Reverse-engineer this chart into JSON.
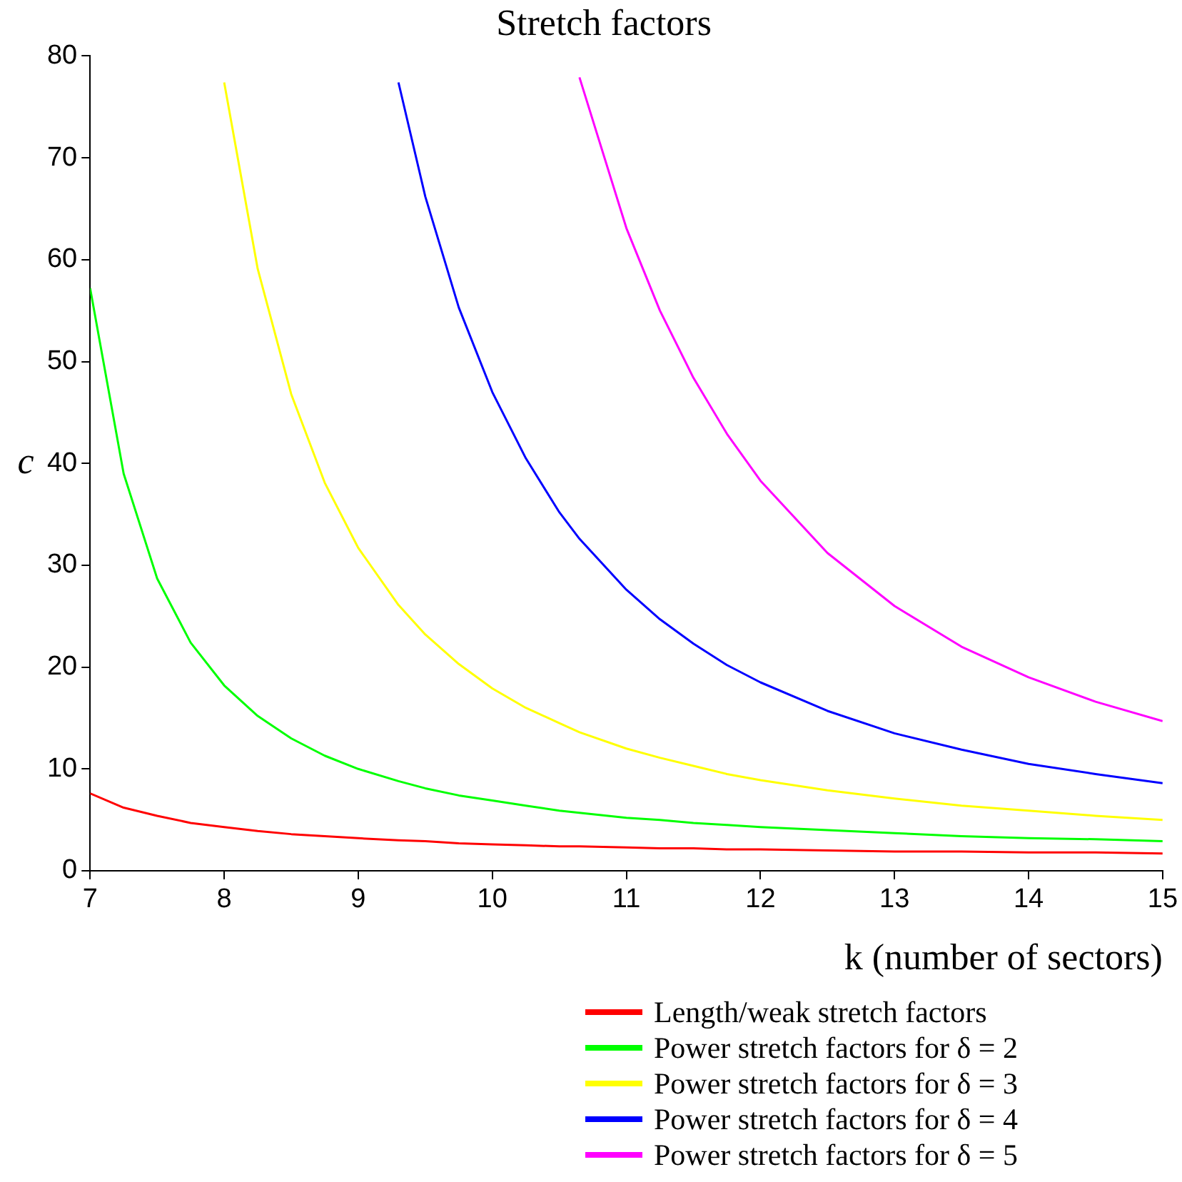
{
  "chart_data": {
    "type": "line",
    "title": "Stretch factors",
    "xlabel": "k (number of sectors)",
    "ylabel": "c",
    "xlim": [
      7,
      15
    ],
    "xticks": [
      7,
      8,
      9,
      10,
      11,
      12,
      13,
      14,
      15
    ],
    "ylim": [
      0,
      80
    ],
    "yticks": [
      0,
      10,
      20,
      30,
      40,
      50,
      60,
      70,
      80
    ],
    "grid": false,
    "legend": "bottom",
    "marker": "none",
    "line_style": "solid",
    "series": [
      {
        "name": "Length/weak stretch factors",
        "color": "#ff0000",
        "x": [
          7,
          7.25,
          7.5,
          7.75,
          8,
          8.25,
          8.5,
          8.75,
          9,
          9.3,
          9.5,
          9.75,
          10,
          10.25,
          10.5,
          10.65,
          11,
          11.25,
          11.5,
          11.75,
          12,
          12.5,
          13,
          13.5,
          14,
          14.5,
          15
        ],
        "values": [
          7.6,
          6.2,
          5.4,
          4.7,
          4.3,
          3.9,
          3.6,
          3.4,
          3.2,
          3.0,
          2.9,
          2.7,
          2.6,
          2.5,
          2.4,
          2.4,
          2.3,
          2.2,
          2.2,
          2.1,
          2.1,
          2.0,
          1.9,
          1.9,
          1.8,
          1.8,
          1.7
        ]
      },
      {
        "name": "Power stretch factors for δ = 2",
        "color": "#00ff00",
        "x": [
          7,
          7.25,
          7.5,
          7.75,
          8,
          8.25,
          8.5,
          8.75,
          9,
          9.3,
          9.5,
          9.75,
          10,
          10.25,
          10.5,
          10.65,
          11,
          11.25,
          11.5,
          11.75,
          12,
          12.5,
          13,
          13.5,
          14,
          14.5,
          15
        ],
        "values": [
          57.2,
          39.0,
          28.7,
          22.4,
          18.2,
          15.2,
          13.0,
          11.3,
          10.0,
          8.8,
          8.1,
          7.4,
          6.9,
          6.4,
          5.9,
          5.7,
          5.2,
          5.0,
          4.7,
          4.5,
          4.3,
          4.0,
          3.7,
          3.4,
          3.2,
          3.1,
          2.9
        ]
      },
      {
        "name": "Power stretch factors for δ = 3",
        "color": "#ffff00",
        "x": [
          8,
          8.25,
          8.5,
          8.75,
          9,
          9.3,
          9.5,
          9.75,
          10,
          10.25,
          10.5,
          10.65,
          11,
          11.25,
          11.5,
          11.75,
          12,
          12.5,
          13,
          13.5,
          14,
          14.5,
          15
        ],
        "values": [
          77.4,
          59.1,
          46.8,
          38.1,
          31.7,
          26.1,
          23.2,
          20.3,
          17.9,
          16.0,
          14.5,
          13.6,
          12.0,
          11.1,
          10.3,
          9.5,
          8.9,
          7.9,
          7.1,
          6.4,
          5.9,
          5.4,
          5.0
        ]
      },
      {
        "name": "Power stretch factors for δ = 4",
        "color": "#0000ff",
        "x": [
          9.3,
          9.5,
          9.75,
          10,
          10.25,
          10.5,
          10.65,
          11,
          11.25,
          11.5,
          11.75,
          12,
          12.5,
          13,
          13.5,
          14,
          14.5,
          15
        ],
        "values": [
          77.4,
          66.2,
          55.3,
          47.0,
          40.5,
          35.2,
          32.6,
          27.6,
          24.7,
          22.3,
          20.2,
          18.5,
          15.7,
          13.5,
          11.9,
          10.5,
          9.5,
          8.6
        ]
      },
      {
        "name": "Power stretch factors for δ = 5",
        "color": "#ff00ff",
        "x": [
          10.65,
          11,
          11.25,
          11.5,
          11.75,
          12,
          12.5,
          13,
          13.5,
          14,
          14.5,
          15
        ],
        "values": [
          77.9,
          63.1,
          55.0,
          48.4,
          42.9,
          38.3,
          31.2,
          26.0,
          22.0,
          19.0,
          16.6,
          14.7
        ]
      }
    ]
  }
}
